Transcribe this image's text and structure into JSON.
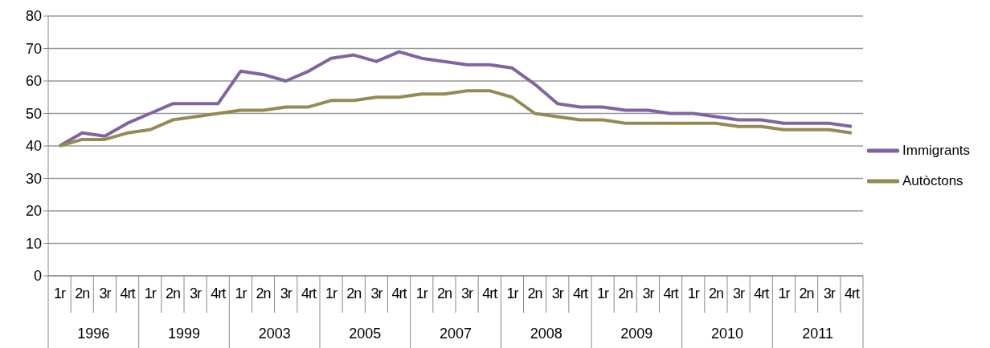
{
  "chart_data": {
    "type": "line",
    "categories": [
      "1r",
      "2n",
      "3r",
      "4rt",
      "1r",
      "2n",
      "3r",
      "4rt",
      "1r",
      "2n",
      "3r",
      "4rt",
      "1r",
      "2n",
      "3r",
      "4rt",
      "1r",
      "2n",
      "3r",
      "4rt",
      "1r",
      "2n",
      "3r",
      "4rt",
      "1r",
      "2n",
      "3r",
      "4rt",
      "1r",
      "2n",
      "3r",
      "4rt",
      "1r",
      "2n",
      "3r",
      "4rt"
    ],
    "annotations": [
      "1996",
      "1999",
      "2003",
      "2005",
      "2007",
      "2008",
      "2009",
      "2010",
      "2011"
    ],
    "series": [
      {
        "name": "Immigrants",
        "color": "#8064a2",
        "values": [
          40,
          44,
          43,
          47,
          50,
          53,
          53,
          53,
          63,
          62,
          60,
          63,
          67,
          68,
          66,
          69,
          67,
          66,
          65,
          65,
          64,
          59,
          53,
          52,
          52,
          51,
          51,
          50,
          50,
          49,
          48,
          48,
          47,
          47,
          47,
          46
        ]
      },
      {
        "name": "Autòctons",
        "color": "#948a54",
        "values": [
          40,
          42,
          42,
          44,
          45,
          48,
          49,
          50,
          51,
          51,
          52,
          52,
          54,
          54,
          55,
          55,
          56,
          56,
          57,
          57,
          55,
          50,
          49,
          48,
          48,
          47,
          47,
          47,
          47,
          47,
          46,
          46,
          45,
          45,
          45,
          44
        ]
      }
    ],
    "ylim": [
      0,
      80
    ],
    "yticks": [
      0,
      10,
      20,
      30,
      40,
      50,
      60,
      70,
      80
    ],
    "grid": "y",
    "legend": "right",
    "marker": "none",
    "line_style": "solid"
  }
}
